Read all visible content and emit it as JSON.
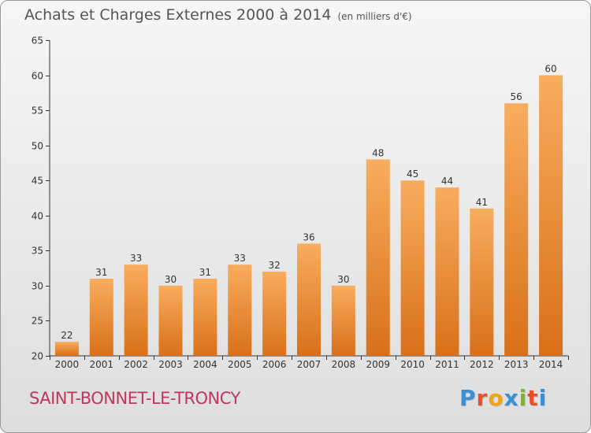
{
  "header": {
    "title": "Achats et Charges Externes 2000 à 2014",
    "unit": "(en milliers d'€)"
  },
  "footer": {
    "commune": "SAINT-BONNET-LE-TRONCY",
    "brand": "Proxiti",
    "brand_colors": [
      "#3b8fd4",
      "#e6502a",
      "#f2a40f",
      "#3b8fd4",
      "#7ab828",
      "#e6502a",
      "#3b8fd4"
    ]
  },
  "chart_data": {
    "type": "bar",
    "title": "Achats et Charges Externes 2000 à 2014",
    "subtitle": "(en milliers d'€)",
    "categories": [
      "2000",
      "2001",
      "2002",
      "2003",
      "2004",
      "2005",
      "2006",
      "2007",
      "2008",
      "2009",
      "2010",
      "2011",
      "2012",
      "2013",
      "2014"
    ],
    "values": [
      22,
      31,
      33,
      30,
      31,
      33,
      32,
      36,
      30,
      48,
      45,
      44,
      41,
      56,
      60
    ],
    "data_labels": [
      "22",
      "31",
      "33",
      "30",
      "31",
      "33",
      "32",
      "36",
      "30",
      "48",
      "45",
      "44",
      "41",
      "56",
      "60"
    ],
    "ylim": [
      20,
      65
    ],
    "yticks": [
      20,
      25,
      30,
      35,
      40,
      45,
      50,
      55,
      60,
      65
    ],
    "xlabel": "",
    "ylabel": "",
    "grid": false,
    "colors": {
      "bar_light": "#f8ad5e",
      "bar_dark": "#d97019",
      "axis": "#333333",
      "text": "#333333"
    }
  }
}
